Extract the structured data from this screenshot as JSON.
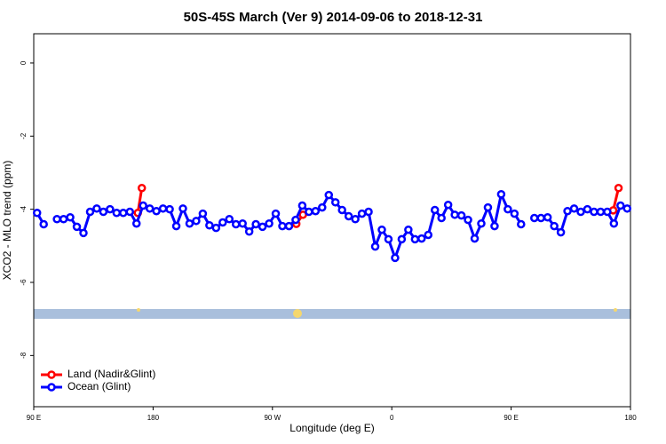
{
  "chart_data": {
    "type": "line",
    "title": "50S-45S March (Ver 9)   2014-09-06 to 2018-12-31",
    "x_label": "Longitude (deg E)",
    "y_label": "XCO2 - MLO trend (ppm)",
    "xlim": [
      90,
      540
    ],
    "ylim": [
      -9.4,
      0.8
    ],
    "xticks": [
      {
        "value": 90,
        "label": "90 E"
      },
      180,
      {
        "value": 270,
        "label": "90 W"
      },
      {
        "value": 360,
        "label": "0"
      },
      {
        "value": 450,
        "label": "90 E"
      },
      {
        "value": 540,
        "label": "180"
      }
    ],
    "yticks": [
      0,
      -2,
      -4,
      -6,
      -8
    ],
    "legend": "bottom-left",
    "series": [
      {
        "name": "Land (Nadir&Glint)",
        "color": "#ff0000",
        "x": [
          168.5,
          171.5,
          250,
          288,
          293,
          400,
          527,
          531
        ],
        "values": [
          -4.1,
          -3.42,
          null,
          -4.4,
          -4.15,
          null,
          -4.03,
          -3.42
        ]
      },
      {
        "name": "Ocean (Glint)",
        "color": "#0000ff",
        "x": [
          92.5,
          97.5,
          102.5,
          107.5,
          112.5,
          117.5,
          122.5,
          127.5,
          132.5,
          137.5,
          142.5,
          147.5,
          152.5,
          157.5,
          162.5,
          167.5,
          172.5,
          177.5,
          182.5,
          187.5,
          192.5,
          197.5,
          202.5,
          207.5,
          212.5,
          217.5,
          222.5,
          227.5,
          232.5,
          237.5,
          242.5,
          247.5,
          252.5,
          257.5,
          262.5,
          267.5,
          272.5,
          277.5,
          282.5,
          287.5,
          292.5,
          297.5,
          302.5,
          307.5,
          312.5,
          317.5,
          322.5,
          327.5,
          332.5,
          337.5,
          342.5,
          347.5,
          352.5,
          357.5,
          362.5,
          367.5,
          372.5,
          377.5,
          382.5,
          387.5,
          392.5,
          397.5,
          402.5,
          407.5,
          412.5,
          417.5,
          422.5,
          427.5,
          432.5,
          437.5,
          442.5,
          447.5,
          452.5,
          457.5,
          462.5,
          467.5,
          472.5,
          477.5,
          482.5,
          487.5,
          492.5,
          497.5,
          502.5,
          507.5,
          512.5,
          517.5,
          522.5,
          527.5,
          532.5,
          537.5
        ],
        "values": [
          -4.1,
          -4.41,
          null,
          -4.27,
          -4.27,
          -4.22,
          -4.48,
          -4.65,
          -4.07,
          -3.98,
          -4.07,
          -4.0,
          -4.1,
          -4.1,
          -4.07,
          -4.39,
          -3.9,
          -3.98,
          -4.05,
          -3.98,
          -4.0,
          -4.46,
          -3.98,
          -4.39,
          -4.32,
          -4.12,
          -4.44,
          -4.51,
          -4.36,
          -4.27,
          -4.41,
          -4.39,
          -4.61,
          -4.41,
          -4.48,
          -4.39,
          -4.12,
          -4.46,
          -4.46,
          -4.29,
          -3.9,
          -4.07,
          -4.05,
          -3.95,
          -3.61,
          -3.81,
          -4.02,
          -4.19,
          -4.27,
          -4.12,
          -4.07,
          -5.02,
          -4.56,
          -4.82,
          -5.33,
          -4.82,
          -4.56,
          -4.82,
          -4.8,
          -4.7,
          -4.02,
          -4.24,
          -3.88,
          -4.15,
          -4.17,
          -4.29,
          -4.8,
          -4.39,
          -3.95,
          -4.46,
          -3.59,
          -4.0,
          -4.12,
          -4.41,
          null,
          -4.24,
          -4.24,
          -4.22,
          -4.46,
          -4.63,
          -4.05,
          -3.98,
          -4.07,
          -4.0,
          -4.07,
          -4.07,
          -4.07,
          -4.39,
          -3.9,
          -3.98
        ]
      }
    ]
  }
}
